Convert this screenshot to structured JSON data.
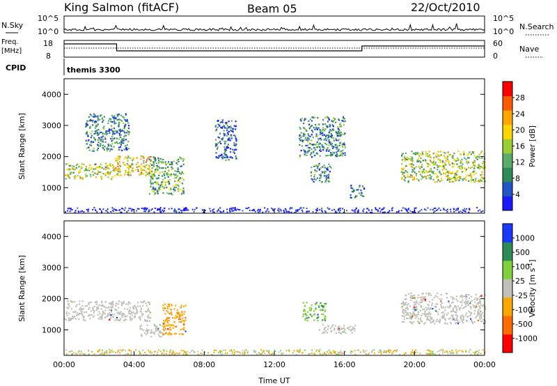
{
  "header": {
    "station": "King Salmon (fitACF)",
    "beam": "Beam 05",
    "date": "22/Oct/2010"
  },
  "noise_panel": {
    "left_label": "N.Sky",
    "right_label": "N.Search",
    "left_ticks": [
      "10^5",
      "10^0"
    ],
    "right_ticks": [
      "10^5",
      "10^0"
    ]
  },
  "freq_panel": {
    "left_label_1": "Freq.",
    "left_label_2": "[MHz]",
    "right_label": "Nave",
    "left_ticks": [
      "18",
      "8"
    ],
    "right_ticks": [
      "60",
      "0"
    ]
  },
  "cpid": {
    "label": "CPID",
    "value": "themis 3300"
  },
  "x_axis": {
    "label": "Time UT",
    "ticks": [
      "00:00",
      "04:00",
      "08:00",
      "12:00",
      "16:00",
      "20:00",
      "00:00"
    ]
  },
  "colors": {
    "power_scale": [
      "#1a1aff",
      "#2255c8",
      "#2e8b57",
      "#5aaa6a",
      "#9acd32",
      "#ffd700",
      "#ffa500",
      "#ff5a00",
      "#ff0000"
    ],
    "velocity_scale": [
      "#ff0000",
      "#ff6a00",
      "#ffa500",
      "#c0c0b8",
      "#7fd13b",
      "#2e8b57",
      "#1a3aff"
    ]
  },
  "chart_data": [
    {
      "type": "heatmap",
      "panel": "power",
      "xlabel": "Time UT",
      "ylabel": "Slant Range [km]",
      "xlim": [
        0,
        24
      ],
      "ylim": [
        180,
        4500
      ],
      "yticks": [
        "1000",
        "2000",
        "3000",
        "4000"
      ],
      "colorbar": {
        "label": "Power [dB]",
        "ticks": [
          "4",
          "8",
          "12",
          "16",
          "20",
          "24",
          "28"
        ],
        "range": [
          0,
          30
        ]
      },
      "features": [
        {
          "t_start": 0.0,
          "t_end": 2.9,
          "range_low": 1300,
          "range_high": 1800,
          "level": 14
        },
        {
          "t_start": 2.9,
          "t_end": 5.2,
          "range_low": 1400,
          "range_high": 2050,
          "level": 20
        },
        {
          "t_start": 4.8,
          "t_end": 6.8,
          "range_low": 800,
          "range_high": 2000,
          "level": 10
        },
        {
          "t_start": 1.2,
          "t_end": 3.7,
          "range_low": 2200,
          "range_high": 3400,
          "level": 6
        },
        {
          "t_start": 8.6,
          "t_end": 9.8,
          "range_low": 1900,
          "range_high": 3200,
          "level": 5
        },
        {
          "t_start": 13.4,
          "t_end": 16.0,
          "range_low": 2000,
          "range_high": 3300,
          "level": 6
        },
        {
          "t_start": 14.0,
          "t_end": 15.2,
          "range_low": 1200,
          "range_high": 1800,
          "level": 8
        },
        {
          "t_start": 16.3,
          "t_end": 17.1,
          "range_low": 700,
          "range_high": 1100,
          "level": 9
        },
        {
          "t_start": 19.2,
          "t_end": 24.0,
          "range_low": 1200,
          "range_high": 2200,
          "level": 14
        }
      ]
    },
    {
      "type": "heatmap",
      "panel": "velocity",
      "xlabel": "Time UT",
      "ylabel": "Slant Range [km]",
      "xlim": [
        0,
        24
      ],
      "ylim": [
        180,
        4500
      ],
      "yticks": [
        "1000",
        "2000",
        "3000",
        "4000"
      ],
      "colorbar": {
        "label": "Velocity [m s",
        "label_sup": "-1",
        "label_end": "]",
        "ticks": [
          "-1000",
          "-500",
          "-100",
          "-25",
          "25",
          "100",
          "500",
          "1000"
        ],
        "range": [
          -1200,
          1200
        ]
      },
      "features": [
        {
          "t_start": 0.0,
          "t_end": 4.9,
          "range_low": 1300,
          "range_high": 1950,
          "velocity": 0
        },
        {
          "t_start": 4.3,
          "t_end": 5.7,
          "range_low": 800,
          "range_high": 1200,
          "velocity": 0
        },
        {
          "t_start": 5.6,
          "t_end": 6.9,
          "range_low": 850,
          "range_high": 1850,
          "velocity": -150
        },
        {
          "t_start": 13.6,
          "t_end": 14.9,
          "range_low": 1300,
          "range_high": 1900,
          "velocity": 150
        },
        {
          "t_start": 14.5,
          "t_end": 16.6,
          "range_low": 900,
          "range_high": 1200,
          "velocity": 0
        },
        {
          "t_start": 19.2,
          "t_end": 24.0,
          "range_low": 1200,
          "range_high": 2200,
          "velocity": 0
        }
      ]
    }
  ]
}
